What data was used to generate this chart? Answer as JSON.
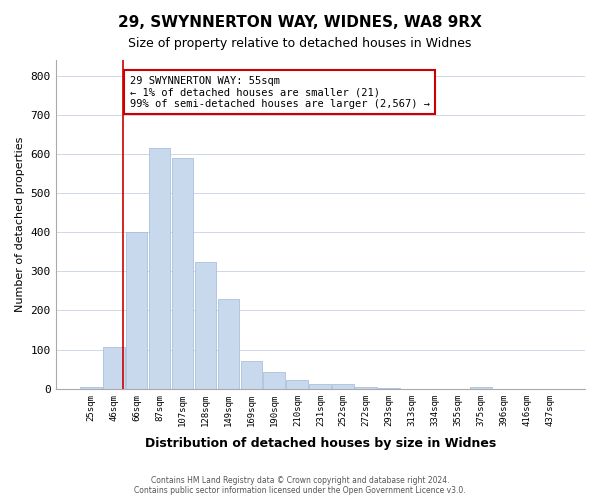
{
  "title1": "29, SWYNNERTON WAY, WIDNES, WA8 9RX",
  "title2": "Size of property relative to detached houses in Widnes",
  "xlabel": "Distribution of detached houses by size in Widnes",
  "ylabel": "Number of detached properties",
  "bar_labels": [
    "25sqm",
    "46sqm",
    "66sqm",
    "87sqm",
    "107sqm",
    "128sqm",
    "149sqm",
    "169sqm",
    "190sqm",
    "210sqm",
    "231sqm",
    "252sqm",
    "272sqm",
    "293sqm",
    "313sqm",
    "334sqm",
    "355sqm",
    "375sqm",
    "396sqm",
    "416sqm",
    "437sqm"
  ],
  "bar_values": [
    5,
    107,
    400,
    615,
    590,
    325,
    230,
    70,
    42,
    22,
    12,
    12,
    5,
    2,
    0,
    0,
    0,
    5,
    0,
    0,
    0
  ],
  "bar_color": "#c9d9ed",
  "bar_edge_color": "#a0b8d8",
  "ylim": [
    0,
    840
  ],
  "yticks": [
    0,
    100,
    200,
    300,
    400,
    500,
    600,
    700,
    800
  ],
  "red_line_x": 1.42,
  "annotation_text": "29 SWYNNERTON WAY: 55sqm\n← 1% of detached houses are smaller (21)\n99% of semi-detached houses are larger (2,567) →",
  "annotation_box_color": "#ffffff",
  "annotation_border_color": "#cc0000",
  "footer": "Contains HM Land Registry data © Crown copyright and database right 2024.\nContains public sector information licensed under the Open Government Licence v3.0.",
  "background_color": "#ffffff",
  "grid_color": "#d0d8e8"
}
